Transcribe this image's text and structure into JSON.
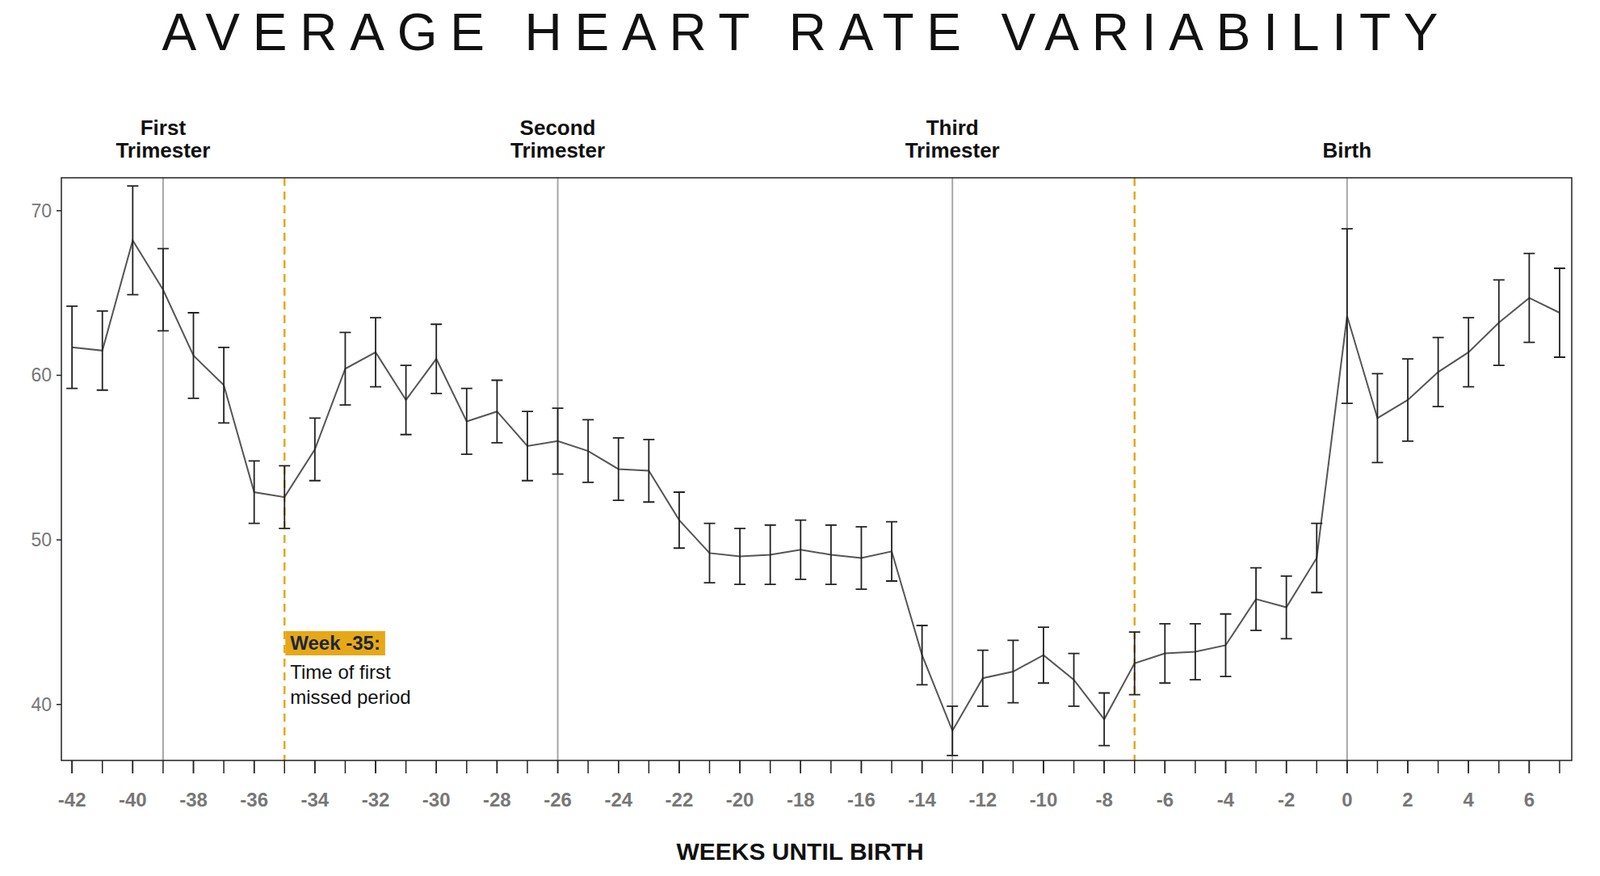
{
  "chart_data": {
    "type": "line",
    "title": "AVERAGE HEART RATE VARIABILITY",
    "x_label": "WEEKS UNTIL BIRTH",
    "color": "#555555",
    "error_color": "#222222",
    "x": [
      -42,
      -41,
      -40,
      -39,
      -38,
      -37,
      -36,
      -35,
      -34,
      -33,
      -32,
      -31,
      -30,
      -29,
      -28,
      -27,
      -26,
      -25,
      -24,
      -23,
      -22,
      -21,
      -20,
      -19,
      -18,
      -17,
      -16,
      -15,
      -14,
      -13,
      -12,
      -11,
      -10,
      -9,
      -8,
      -7,
      -6,
      -5,
      -4,
      -3,
      -2,
      -1,
      0,
      1,
      2,
      3,
      4,
      5,
      6,
      7
    ],
    "values": [
      61.7,
      61.5,
      68.2,
      65.2,
      61.2,
      59.4,
      52.9,
      52.6,
      55.5,
      60.4,
      61.4,
      58.5,
      61.0,
      57.2,
      57.8,
      55.7,
      56.0,
      55.4,
      54.3,
      54.2,
      51.2,
      49.2,
      49.0,
      49.1,
      49.4,
      49.1,
      48.9,
      49.3,
      43.0,
      38.4,
      41.6,
      42.0,
      43.0,
      41.5,
      39.1,
      42.5,
      43.1,
      43.2,
      43.6,
      46.4,
      45.9,
      48.9,
      63.6,
      57.4,
      58.5,
      60.2,
      61.4,
      63.2,
      64.7,
      63.8
    ],
    "errors": [
      2.5,
      2.4,
      3.3,
      2.5,
      2.6,
      2.3,
      1.9,
      1.9,
      1.9,
      2.2,
      2.1,
      2.1,
      2.1,
      2.0,
      1.9,
      2.1,
      2.0,
      1.9,
      1.9,
      1.9,
      1.7,
      1.8,
      1.7,
      1.8,
      1.8,
      1.8,
      1.9,
      1.8,
      1.8,
      1.5,
      1.7,
      1.9,
      1.7,
      1.6,
      1.6,
      1.9,
      1.8,
      1.7,
      1.9,
      1.9,
      1.9,
      2.1,
      5.3,
      2.7,
      2.5,
      2.1,
      2.1,
      2.6,
      2.7,
      2.7
    ],
    "xlim": [
      -42.35,
      7.4
    ],
    "ylim": [
      36.6,
      72
    ],
    "xticks": [
      -42,
      -40,
      -38,
      -36,
      -34,
      -32,
      -30,
      -28,
      -26,
      -24,
      -22,
      -20,
      -18,
      -16,
      -14,
      -12,
      -10,
      -8,
      -6,
      -4,
      -2,
      0,
      2,
      4,
      6
    ],
    "yticks": [
      40,
      50,
      60,
      70
    ],
    "grid": false,
    "vlines": [
      {
        "x": -39,
        "label": [
          "First",
          "Trimester"
        ],
        "color": "#a6a6a6",
        "line_style": "solid"
      },
      {
        "x": -35,
        "color": "#e6a817",
        "line_style": "dashed",
        "callout": {
          "title": "Week -35:",
          "text": [
            "Time of first",
            "missed period"
          ]
        }
      },
      {
        "x": -26,
        "label": [
          "Second",
          "Trimester"
        ],
        "color": "#a6a6a6",
        "line_style": "solid"
      },
      {
        "x": -13,
        "label": [
          "Third",
          "Trimester"
        ],
        "color": "#a6a6a6",
        "line_style": "solid"
      },
      {
        "x": -7,
        "color": "#e6a817",
        "line_style": "dashed"
      },
      {
        "x": 0,
        "label": [
          "Birth"
        ],
        "color": "#a6a6a6",
        "line_style": "solid"
      }
    ]
  }
}
